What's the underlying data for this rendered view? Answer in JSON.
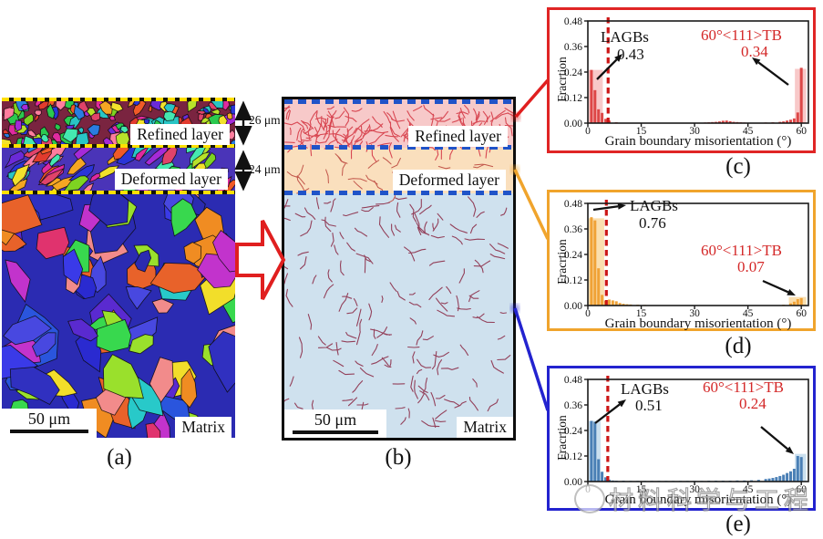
{
  "panel_a": {
    "caption": "(a)",
    "label_refined": "Refined layer",
    "label_deformed": "Deformed layer",
    "label_matrix": "Matrix",
    "scale_bar": "50 μm",
    "depth_refined": "26 μm",
    "depth_deformed": "24 μm"
  },
  "panel_b": {
    "caption": "(b)",
    "label_refined": "Refined layer",
    "label_deformed": "Deformed layer",
    "label_matrix": "Matrix",
    "scale_bar": "50 μm"
  },
  "chart_data": [
    {
      "id": "c",
      "caption": "(c)",
      "type": "bar",
      "xlabel": "Grain boundary misorientation (°)",
      "ylabel": "Fracrtion",
      "xlim": [
        0,
        62
      ],
      "ylim": [
        0,
        0.48
      ],
      "xticks": [
        0,
        15,
        30,
        45,
        60
      ],
      "yticks": [
        "0.00",
        "0.12",
        "0.24",
        "0.36",
        "0.48"
      ],
      "lagbs_label": "LAGBs",
      "lagbs_value": "0.43",
      "tb_label": "60°<111>TB",
      "tb_value": "0.34",
      "border_color": "#e02525",
      "bar_color": "#dd4747",
      "bar_fill_light": "rgba(242,148,148,0.5)",
      "dashed_color": "#cc1616",
      "dashed_x": 5.7,
      "wide_bars": [
        [
          0.2,
          4.2,
          0.25
        ],
        [
          58.2,
          61.4,
          0.255
        ]
      ],
      "bars": [
        [
          1,
          0.25
        ],
        [
          2,
          0.155
        ],
        [
          3,
          0.065
        ],
        [
          4,
          0.048
        ],
        [
          5,
          0.02
        ],
        [
          6,
          0.012
        ],
        [
          8,
          0.004
        ],
        [
          33,
          0.003
        ],
        [
          34,
          0.004
        ],
        [
          35,
          0.005
        ],
        [
          36,
          0.006
        ],
        [
          37,
          0.008
        ],
        [
          38,
          0.011
        ],
        [
          39,
          0.012
        ],
        [
          40,
          0.009
        ],
        [
          41,
          0.006
        ],
        [
          42,
          0.005
        ],
        [
          43,
          0.004
        ],
        [
          44,
          0.003
        ],
        [
          50,
          0.003
        ],
        [
          52,
          0.004
        ],
        [
          54,
          0.006
        ],
        [
          55,
          0.008
        ],
        [
          56,
          0.012
        ],
        [
          57,
          0.016
        ],
        [
          58,
          0.022
        ],
        [
          59,
          0.05
        ],
        [
          60,
          0.26
        ]
      ]
    },
    {
      "id": "d",
      "caption": "(d)",
      "type": "bar",
      "xlabel": "Grain boundary misorientation (°)",
      "ylabel": "Fracrtion",
      "xlim": [
        0,
        62
      ],
      "ylim": [
        0,
        0.48
      ],
      "xticks": [
        0,
        15,
        30,
        45,
        60
      ],
      "yticks": [
        "0.00",
        "0.12",
        "0.24",
        "0.36",
        "0.48"
      ],
      "lagbs_label": "LAGBs",
      "lagbs_value": "0.76",
      "tb_label": "60°<111>TB",
      "tb_value": "0.07",
      "border_color": "#f0a42c",
      "bar_color": "#f0a236",
      "bar_fill_light": "rgba(246,196,110,0.55)",
      "dashed_color": "#cc1616",
      "dashed_x": 5.2,
      "wide_bars": [
        [
          0.2,
          4.6,
          0.41
        ],
        [
          56.5,
          61.4,
          0.04
        ]
      ],
      "bars": [
        [
          1,
          0.415
        ],
        [
          2,
          0.4
        ],
        [
          3,
          0.175
        ],
        [
          4,
          0.05
        ],
        [
          5,
          0.022
        ],
        [
          6,
          0.028
        ],
        [
          7,
          0.024
        ],
        [
          8,
          0.02
        ],
        [
          9,
          0.012
        ],
        [
          10,
          0.008
        ],
        [
          11,
          0.006
        ],
        [
          12,
          0.005
        ],
        [
          14,
          0.004
        ],
        [
          16,
          0.003
        ],
        [
          18,
          0.002
        ],
        [
          20,
          0.002
        ],
        [
          25,
          0.001
        ],
        [
          30,
          0.001
        ],
        [
          35,
          0.001
        ],
        [
          40,
          0.001
        ],
        [
          45,
          0.001
        ],
        [
          50,
          0.002
        ],
        [
          55,
          0.004
        ],
        [
          57,
          0.01
        ],
        [
          58,
          0.018
        ],
        [
          59,
          0.03
        ],
        [
          60,
          0.035
        ]
      ]
    },
    {
      "id": "e",
      "caption": "(e)",
      "type": "bar",
      "xlabel": "Grain boundary misorientation (°)",
      "ylabel": "Fracrtion",
      "xlim": [
        0,
        62
      ],
      "ylim": [
        0,
        0.48
      ],
      "xticks": [
        0,
        15,
        30,
        45,
        60
      ],
      "yticks": [
        "0.00",
        "0.12",
        "0.24",
        "0.36",
        "0.48"
      ],
      "lagbs_label": "LAGBs",
      "lagbs_value": "0.51",
      "tb_label": "60°<111>TB",
      "tb_value": "0.24",
      "border_color": "#2323cf",
      "bar_color": "#4a7fb5",
      "bar_fill_light": "rgba(160,198,226,0.55)",
      "dashed_color": "#cc1616",
      "dashed_x": 5.6,
      "wide_bars": [
        [
          0.2,
          3.6,
          0.285
        ],
        [
          58.2,
          61.4,
          0.13
        ]
      ],
      "bars": [
        [
          1,
          0.285
        ],
        [
          2,
          0.28
        ],
        [
          3,
          0.105
        ],
        [
          4,
          0.046
        ],
        [
          5,
          0.02
        ],
        [
          6,
          0.009
        ],
        [
          7,
          0.005
        ],
        [
          8,
          0.004
        ],
        [
          10,
          0.004
        ],
        [
          12,
          0.003
        ],
        [
          14,
          0.003
        ],
        [
          16,
          0.003
        ],
        [
          18,
          0.003
        ],
        [
          20,
          0.003
        ],
        [
          22,
          0.003
        ],
        [
          24,
          0.003
        ],
        [
          26,
          0.003
        ],
        [
          28,
          0.003
        ],
        [
          30,
          0.003
        ],
        [
          32,
          0.003
        ],
        [
          34,
          0.004
        ],
        [
          36,
          0.004
        ],
        [
          38,
          0.004
        ],
        [
          40,
          0.004
        ],
        [
          42,
          0.005
        ],
        [
          44,
          0.005
        ],
        [
          46,
          0.006
        ],
        [
          48,
          0.008
        ],
        [
          50,
          0.012
        ],
        [
          51,
          0.014
        ],
        [
          52,
          0.017
        ],
        [
          53,
          0.021
        ],
        [
          54,
          0.026
        ],
        [
          55,
          0.032
        ],
        [
          56,
          0.04
        ],
        [
          57,
          0.048
        ],
        [
          58,
          0.06
        ],
        [
          59,
          0.12
        ],
        [
          60,
          0.115
        ]
      ]
    }
  ],
  "connectors": {
    "refined_color": "#e01f1f",
    "deformed_color": "#f0a42c",
    "matrix_color": "#2323cf"
  },
  "band_colors": {
    "refined": "#f7c9c9",
    "deformed": "#fadfbd",
    "matrix": "#cfe1ee"
  },
  "watermark": {
    "text": "材料科学与工程"
  }
}
